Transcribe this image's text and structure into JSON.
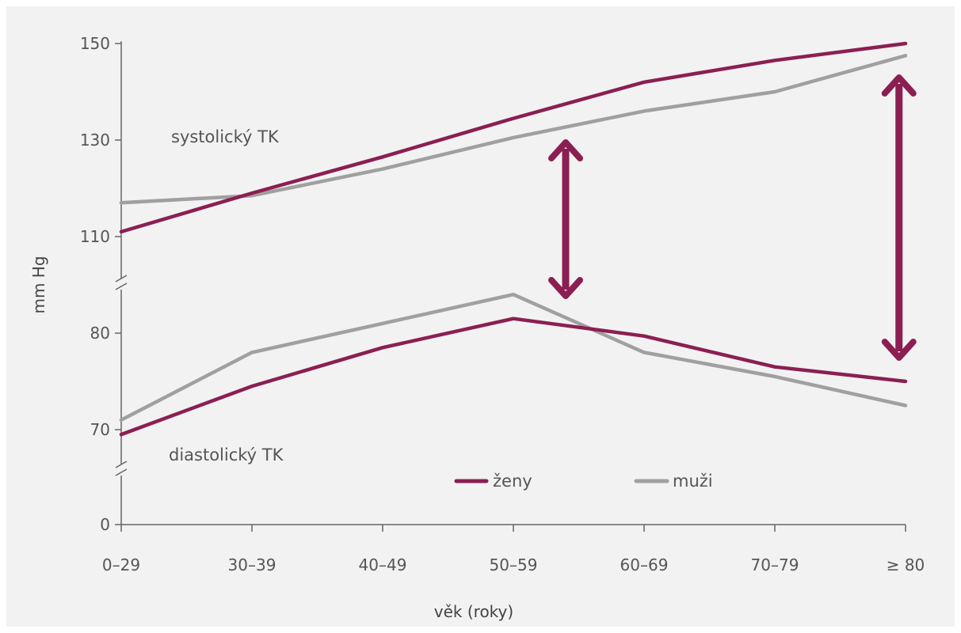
{
  "chart_data": {
    "type": "line",
    "xlabel": "věk (roky)",
    "ylabel": "mm Hg",
    "categories": [
      "0–29",
      "30–39",
      "40–49",
      "50–59",
      "60–69",
      "70–79",
      "≥ 80"
    ],
    "yticks": [
      "150",
      "130",
      "110",
      "80",
      "70",
      "0"
    ],
    "y_axis_breaks": [
      "110–80",
      "70–0"
    ],
    "annotations": {
      "systolic": "systolický TK",
      "diastolic": "diastolický TK"
    },
    "series": [
      {
        "name": "ženy",
        "color": "#8b1f52",
        "systolic": [
          111,
          119,
          126.5,
          134.5,
          142,
          146.5,
          150
        ],
        "diastolic": [
          69.5,
          74.5,
          78.5,
          81.5,
          79.7,
          76.5,
          75
        ]
      },
      {
        "name": "muži",
        "color": "#a0a0a0",
        "systolic": [
          117,
          118.5,
          124,
          130.5,
          136,
          140,
          147.5
        ],
        "diastolic": [
          71,
          78,
          81,
          84,
          78,
          75.5,
          72.5
        ]
      }
    ],
    "arrows": [
      {
        "at": "50–59",
        "from": "diastolic",
        "to": "systolic"
      },
      {
        "at": "≥ 80",
        "from": "diastolic",
        "to": "systolic"
      }
    ],
    "legend": {
      "position": "bottom-center",
      "items": [
        "ženy",
        "muži"
      ]
    }
  }
}
